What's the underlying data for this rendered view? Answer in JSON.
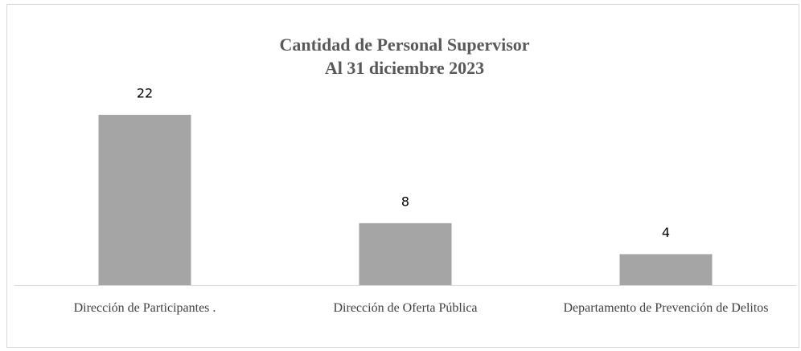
{
  "chart_data": {
    "type": "bar",
    "title": "Cantidad de Personal Supervisor",
    "subtitle": "Al 31 diciembre 2023",
    "categories": [
      "Dirección de Participantes  .",
      "Dirección de Oferta Pública",
      "Departamento de Prevención de Delitos"
    ],
    "values": [
      22,
      8,
      4
    ],
    "color": "#a5a5a5",
    "ylim": [
      0,
      25
    ]
  }
}
